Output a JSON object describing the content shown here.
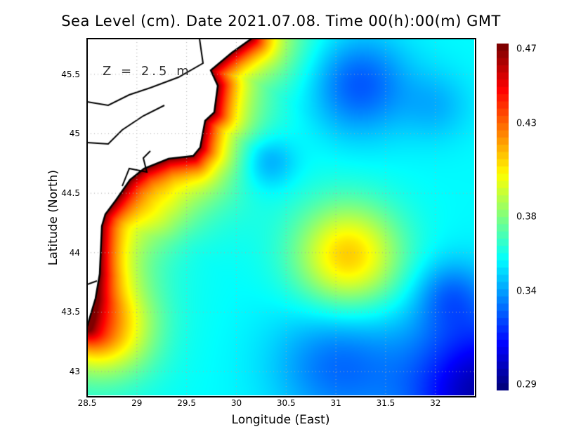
{
  "title": "Sea Level (cm). Date 2021.07.08. Time 00(h):00(m) GMT",
  "depth_label": "Z = 2.5 m",
  "x_axis": {
    "label": "Longitude (East)",
    "ticks": [
      "28.5",
      "29",
      "29.5",
      "30",
      "30.5",
      "31",
      "31.5",
      "32"
    ],
    "range": [
      28.5,
      32.39
    ]
  },
  "y_axis": {
    "label": "Latitude (North)",
    "ticks": [
      "43",
      "43.5",
      "44",
      "44.5",
      "45",
      "45.5"
    ],
    "range": [
      42.8,
      45.8
    ]
  },
  "colorbar": {
    "ticks": [
      "0.47",
      "0.43",
      "0.38",
      "0.34",
      "0.29"
    ],
    "min": 0.29,
    "max": 0.47,
    "colormap": "jet"
  },
  "colors": {
    "land": "#ffffff",
    "coast": "#000000",
    "grid": "#aaaaaa"
  }
}
